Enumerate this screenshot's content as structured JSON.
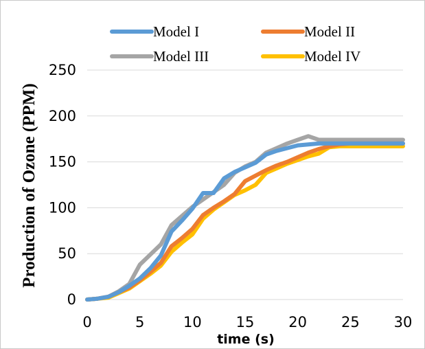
{
  "chart_data": {
    "type": "line",
    "title": "",
    "xlabel": "time (s)",
    "ylabel": "Production of  Ozone (PPM)",
    "xlim": [
      0,
      30
    ],
    "ylim": [
      0,
      250
    ],
    "x_ticks": [
      0,
      5,
      10,
      15,
      20,
      25,
      30
    ],
    "y_ticks": [
      0,
      50,
      100,
      150,
      200,
      250
    ],
    "grid": "horizontal",
    "legend_placement": "top",
    "x": [
      0,
      1,
      2,
      3,
      4,
      5,
      6,
      7,
      8,
      9,
      10,
      11,
      12,
      13,
      14,
      15,
      16,
      17,
      18,
      19,
      20,
      21,
      22,
      23,
      24,
      25,
      26,
      27,
      28,
      29,
      30
    ],
    "series": [
      {
        "name": "Model I",
        "color": "#5B9BD5",
        "values": [
          0,
          1,
          3,
          8,
          15,
          23,
          34,
          48,
          74,
          86,
          99,
          116,
          116,
          132,
          139,
          144,
          149,
          158,
          162,
          165,
          168,
          169,
          170,
          170,
          170,
          170,
          170,
          170,
          170,
          170,
          170
        ]
      },
      {
        "name": "Model II",
        "color": "#ED7D31",
        "values": [
          0,
          1,
          3,
          8,
          13,
          21,
          30,
          40,
          58,
          67,
          77,
          92,
          100,
          107,
          115,
          129,
          135,
          141,
          146,
          150,
          155,
          160,
          164,
          167,
          169,
          170,
          170,
          170,
          170,
          170,
          170
        ]
      },
      {
        "name": "Model III",
        "color": "#A5A5A5",
        "values": [
          0,
          1,
          3,
          9,
          17,
          38,
          49,
          60,
          81,
          91,
          101,
          109,
          117,
          125,
          138,
          145,
          150,
          160,
          165,
          170,
          174,
          178,
          174,
          174,
          174,
          174,
          174,
          174,
          174,
          174,
          174
        ]
      },
      {
        "name": "Model IV",
        "color": "#FFC000",
        "values": [
          0,
          1,
          2,
          7,
          12,
          20,
          28,
          37,
          52,
          62,
          71,
          88,
          98,
          106,
          114,
          119,
          125,
          138,
          143,
          148,
          152,
          156,
          159,
          166,
          167,
          167,
          167,
          167,
          167,
          167,
          167
        ]
      }
    ]
  }
}
